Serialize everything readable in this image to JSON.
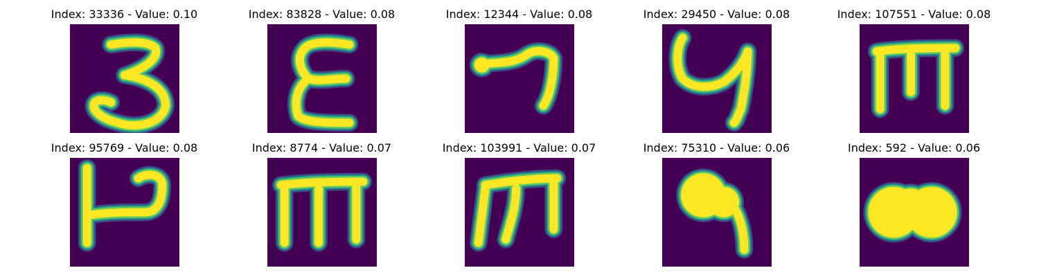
{
  "colors": {
    "background": "#440154",
    "stroke_core": "#fde725",
    "stroke_mid": "#5ec962",
    "stroke_edge": "#21918c",
    "stroke_outer": "#3b528b"
  },
  "panels": [
    {
      "title": "Index: 33336 - Value: 0.10",
      "glyph": "3",
      "paths": [
        "M 12 6 C 18 5 23 5 25 7 C 26 10 22 13 16 15 C 23 16 28 19 28 24 C 27 29 20 31 14 29 C 10 28 7 26 7 24 C 7 22 10 22 12 23"
      ],
      "blobs": []
    },
    {
      "title": "Index: 83828 - Value: 0.08",
      "glyph": "E",
      "paths": [
        "M 24 6 C 18 5 13 5 11 7 C 8 10 10 14 12 16 C 15 17 19 16 23 16 M 12 16 C 8 19 8 24 9 27 C 11 29 18 29 24 29"
      ],
      "blobs": []
    },
    {
      "title": "Index: 12344 - Value: 0.08",
      "glyph": "7",
      "paths": [
        "M 4 12 C 8 11 14 12 18 9 C 21 7 25 8 26 10 C 26 15 25 21 23 24"
      ],
      "blobs": [
        {
          "cx": 5,
          "cy": 12,
          "r": 2.2
        }
      ]
    },
    {
      "title": "Index: 29450 - Value: 0.08",
      "glyph": "y",
      "paths": [
        "M 6 4 C 4 7 4 13 6 16 C 9 19 14 19 18 17 C 22 14 24 11 25 8 C 25 14 24 20 23 25 C 22 27 22 28 21 29"
      ],
      "blobs": []
    },
    {
      "title": "Index: 107551 - Value: 0.08",
      "glyph": "m",
      "paths": [
        "M 5 8 C 12 7 21 7 28 7 M 6 8 L 6 25 M 15 9 L 15 20 M 25 8 C 25 14 25 20 25 24"
      ],
      "blobs": []
    },
    {
      "title": "Index: 95769 - Value: 0.08",
      "glyph": "h",
      "paths": [
        "M 5 3 C 5 12 5 21 5 25 M 5 17 C 10 16 16 16 22 16 C 26 16 27 12 27 8 C 27 5 23 4 20 6"
      ],
      "blobs": []
    },
    {
      "title": "Index: 8774 - Value: 0.07",
      "glyph": "m",
      "paths": [
        "M 4 8 C 12 7 21 7 28 7 M 5 8 L 5 25 M 15 9 L 15 25 M 26 8 L 26 24"
      ],
      "blobs": []
    },
    {
      "title": "Index: 103991 - Value: 0.07",
      "glyph": "m",
      "paths": [
        "M 6 8 C 12 7 20 6 27 6 M 6 9 L 4 25 M 15 9 C 15 15 13 20 12 24 M 26 6 C 26 13 26 18 26 21"
      ],
      "blobs": []
    },
    {
      "title": "Index: 75310 - Value: 0.06",
      "glyph": "q",
      "paths": [
        "M 20 13 C 23 17 24 22 24 27"
      ],
      "blobs": [
        {
          "cx": 12,
          "cy": 11,
          "r": 6.5
        },
        {
          "cx": 18,
          "cy": 13,
          "r": 4.5
        }
      ]
    },
    {
      "title": "Index: 592 - Value: 0.06",
      "glyph": "oo",
      "paths": [],
      "blobs": [
        {
          "cx": 10,
          "cy": 16,
          "r": 7.5
        },
        {
          "cx": 21,
          "cy": 16,
          "r": 7.5
        },
        {
          "cx": 15,
          "cy": 14,
          "r": 5
        }
      ]
    }
  ]
}
